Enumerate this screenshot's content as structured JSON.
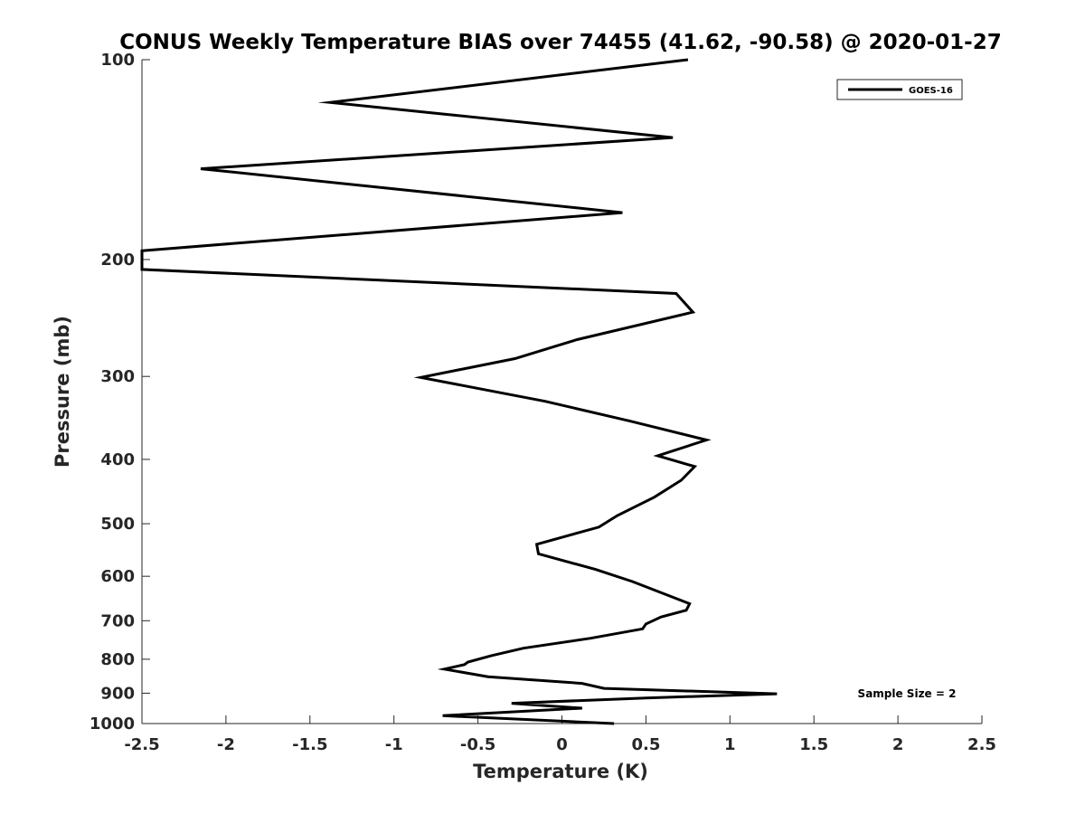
{
  "chart_data": {
    "type": "line",
    "title": "CONUS Weekly Temperature BIAS over 74455 (41.62, -90.58) @ 2020-01-27",
    "xlabel": "Temperature (K)",
    "ylabel": "Pressure (mb)",
    "xlim": [
      -2.5,
      2.5
    ],
    "ylim": [
      100,
      1000
    ],
    "y_scale": "log",
    "y_reversed": true,
    "grid": false,
    "legend_position": "top-right",
    "x_ticks": [
      -2.5,
      -2,
      -1.5,
      -1,
      -0.5,
      0,
      0.5,
      1,
      1.5,
      2,
      2.5
    ],
    "x_tick_labels": [
      "-2.5",
      "-2",
      "-1.5",
      "-1",
      "-0.5",
      "0",
      "0.5",
      "1",
      "1.5",
      "2",
      "2.5"
    ],
    "y_ticks": [
      100,
      200,
      300,
      400,
      500,
      600,
      700,
      800,
      900,
      1000
    ],
    "y_tick_labels": [
      "100",
      "200",
      "300",
      "400",
      "500",
      "600",
      "700",
      "800",
      "900",
      "1000"
    ],
    "annotation": "Sample Size = 2",
    "series": [
      {
        "name": "GOES-16",
        "color": "#000000",
        "points": [
          {
            "x": 0.75,
            "p": 100
          },
          {
            "x": -1.38,
            "p": 116
          },
          {
            "x": 0.66,
            "p": 131
          },
          {
            "x": -2.15,
            "p": 146
          },
          {
            "x": 0.36,
            "p": 170
          },
          {
            "x": -2.5,
            "p": 194
          },
          {
            "x": -2.5,
            "p": 207
          },
          {
            "x": 0.68,
            "p": 225
          },
          {
            "x": 0.78,
            "p": 240
          },
          {
            "x": 0.09,
            "p": 264
          },
          {
            "x": -0.28,
            "p": 282
          },
          {
            "x": -0.84,
            "p": 301
          },
          {
            "x": -0.1,
            "p": 327
          },
          {
            "x": 0.4,
            "p": 350
          },
          {
            "x": 0.86,
            "p": 374
          },
          {
            "x": 0.57,
            "p": 395
          },
          {
            "x": 0.79,
            "p": 410
          },
          {
            "x": 0.71,
            "p": 430
          },
          {
            "x": 0.55,
            "p": 456
          },
          {
            "x": 0.33,
            "p": 486
          },
          {
            "x": 0.22,
            "p": 506
          },
          {
            "x": -0.15,
            "p": 537
          },
          {
            "x": -0.14,
            "p": 555
          },
          {
            "x": 0.2,
            "p": 586
          },
          {
            "x": 0.42,
            "p": 611
          },
          {
            "x": 0.76,
            "p": 660
          },
          {
            "x": 0.74,
            "p": 675
          },
          {
            "x": 0.59,
            "p": 691
          },
          {
            "x": 0.5,
            "p": 708
          },
          {
            "x": 0.48,
            "p": 720
          },
          {
            "x": 0.17,
            "p": 744
          },
          {
            "x": -0.23,
            "p": 770
          },
          {
            "x": -0.42,
            "p": 790
          },
          {
            "x": -0.56,
            "p": 808
          },
          {
            "x": -0.58,
            "p": 815
          },
          {
            "x": -0.7,
            "p": 828
          },
          {
            "x": -0.44,
            "p": 850
          },
          {
            "x": 0.12,
            "p": 870
          },
          {
            "x": 0.25,
            "p": 885
          },
          {
            "x": 1.28,
            "p": 902
          },
          {
            "x": 0.5,
            "p": 915
          },
          {
            "x": -0.3,
            "p": 932
          },
          {
            "x": 0.12,
            "p": 948
          },
          {
            "x": -0.71,
            "p": 973
          },
          {
            "x": 0.31,
            "p": 1000
          }
        ]
      }
    ]
  }
}
